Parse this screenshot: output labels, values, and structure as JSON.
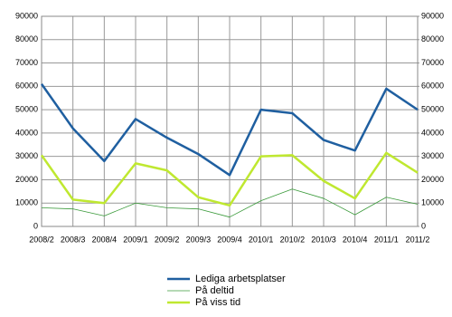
{
  "chart_data": {
    "type": "line",
    "categories": [
      "2008/2",
      "2008/3",
      "2008/4",
      "2009/1",
      "2009/2",
      "2009/3",
      "2009/4",
      "2010/1",
      "2010/2",
      "2010/3",
      "2010/4",
      "2011/1",
      "2011/2"
    ],
    "series": [
      {
        "name": "Lediga arbetsplatser",
        "color": "#1f5fa0",
        "values": [
          61000,
          42000,
          28000,
          46000,
          38000,
          31000,
          22000,
          50000,
          48500,
          37000,
          32500,
          59000,
          50000
        ]
      },
      {
        "name": "På deltid",
        "color": "#3a9a3a",
        "values": [
          8000,
          7500,
          4500,
          10000,
          8000,
          7500,
          4000,
          11000,
          16000,
          12000,
          5000,
          12500,
          9500
        ]
      },
      {
        "name": "På viss tid",
        "color": "#bfe830",
        "values": [
          30500,
          11500,
          10000,
          27000,
          24000,
          12500,
          9000,
          30000,
          30500,
          19500,
          12000,
          31500,
          23000
        ]
      }
    ],
    "ylim": [
      0,
      90000
    ],
    "yticks": [
      0,
      10000,
      20000,
      30000,
      40000,
      50000,
      60000,
      70000,
      80000,
      90000
    ],
    "y2lim": [
      0,
      90000
    ],
    "y2ticks": [
      0,
      10000,
      20000,
      30000,
      40000,
      50000,
      60000,
      70000,
      80000,
      90000
    ],
    "grid": true,
    "legend": "bottom"
  }
}
